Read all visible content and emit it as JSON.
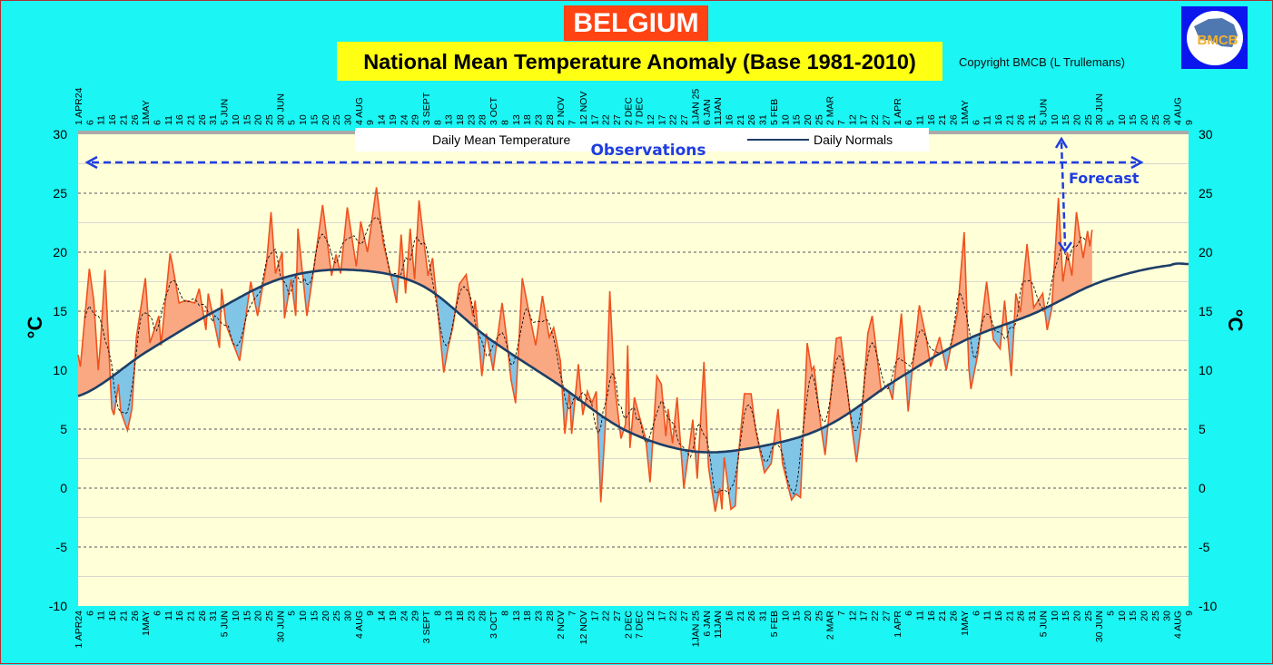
{
  "header": {
    "country": "BELGIUM",
    "title": "National Mean Temperature Anomaly (Base 1981-2010)",
    "copyright": "Copyright BMCB (L Trullemans)",
    "logo_text": "BMCB"
  },
  "colors": {
    "background": "#1bf5f3",
    "plot_background": "#ffffd8",
    "above_normal_fill": "#f9a882",
    "below_normal_fill": "#80c4e6",
    "observation_line": "#f0521e",
    "normal_line": "#1d3e66",
    "annotation": "#1f3de0"
  },
  "chart_data": {
    "type": "area",
    "title": "National Mean Temperature Anomaly (Base 1981-2010)",
    "ylabel": "°C",
    "ylim": [
      -10,
      30
    ],
    "yticks": [
      30,
      25,
      20,
      15,
      10,
      5,
      0,
      -5,
      -10
    ],
    "xlim": [
      "2024-04-01",
      "2025-08-09"
    ],
    "grid": true,
    "legend_position": "top",
    "x_tick_labels": [
      "1 APR24",
      "6",
      "11",
      "16",
      "21",
      "26",
      "1MAY",
      "6",
      "11",
      "16",
      "21",
      "26",
      "31",
      "5 JUN",
      "10",
      "15",
      "20",
      "25",
      "30 JUN",
      "5",
      "10",
      "15",
      "20",
      "25",
      "30",
      "4 AUG",
      "9",
      "14",
      "19",
      "24",
      "29",
      "3 SEPT",
      "8",
      "13",
      "18",
      "23",
      "28",
      "3 OCT",
      "8",
      "13",
      "18",
      "23",
      "28",
      "2 NOV",
      "7",
      "12 NOV",
      "17",
      "22",
      "27",
      "2 DEC",
      "7 DEC",
      "12",
      "17",
      "22",
      "27",
      "1JAN 25",
      "6 JAN",
      "11JAN",
      "16",
      "21",
      "26",
      "31",
      "5 FEB",
      "10",
      "15",
      "20",
      "25",
      "2 MAR",
      "7",
      "12",
      "17",
      "22",
      "27",
      "1 APR",
      "6",
      "11",
      "16",
      "21",
      "26",
      "1MAY",
      "6",
      "11",
      "16",
      "21",
      "26",
      "31",
      "5 JUN",
      "10",
      "15",
      "20",
      "25",
      "30 JUN",
      "5",
      "10",
      "15",
      "20",
      "25",
      "30",
      "4 AUG",
      "9"
    ],
    "annotations": {
      "observations": "Observations",
      "forecast": "Forecast"
    },
    "series": [
      {
        "name": "Daily Mean Temperature",
        "points": [
          [
            "2024-04-01",
            11.3
          ],
          [
            "2024-04-02",
            10.3
          ],
          [
            "2024-04-06",
            18.6
          ],
          [
            "2024-04-08",
            15.9
          ],
          [
            "2024-04-10",
            10
          ],
          [
            "2024-04-11",
            12.3
          ],
          [
            "2024-04-13",
            18.5
          ],
          [
            "2024-04-16",
            6.7
          ],
          [
            "2024-04-17",
            6.2
          ],
          [
            "2024-04-19",
            8.8
          ],
          [
            "2024-04-20",
            6.5
          ],
          [
            "2024-04-23",
            4.9
          ],
          [
            "2024-04-25",
            6.7
          ],
          [
            "2024-04-27",
            12.8
          ],
          [
            "2024-05-01",
            17.8
          ],
          [
            "2024-05-03",
            12.3
          ],
          [
            "2024-05-07",
            14.6
          ],
          [
            "2024-05-08",
            12.1
          ],
          [
            "2024-05-12",
            19.9
          ],
          [
            "2024-05-13",
            19
          ],
          [
            "2024-05-16",
            15.7
          ],
          [
            "2024-05-19",
            15.9
          ],
          [
            "2024-05-23",
            15.7
          ],
          [
            "2024-05-25",
            16.9
          ],
          [
            "2024-05-28",
            13.4
          ],
          [
            "2024-05-29",
            16.5
          ],
          [
            "2024-06-01",
            13.8
          ],
          [
            "2024-06-03",
            11.9
          ],
          [
            "2024-06-04",
            16.9
          ],
          [
            "2024-06-06",
            13.8
          ],
          [
            "2024-06-12",
            10.8
          ],
          [
            "2024-06-17",
            17.5
          ],
          [
            "2024-06-20",
            14.6
          ],
          [
            "2024-06-24",
            19
          ],
          [
            "2024-06-26",
            23.4
          ],
          [
            "2024-06-28",
            18.2
          ],
          [
            "2024-07-01",
            20
          ],
          [
            "2024-07-02",
            14.4
          ],
          [
            "2024-07-05",
            17.7
          ],
          [
            "2024-07-07",
            14.6
          ],
          [
            "2024-07-08",
            22
          ],
          [
            "2024-07-12",
            14.6
          ],
          [
            "2024-07-15",
            18.5
          ],
          [
            "2024-07-19",
            24
          ],
          [
            "2024-07-23",
            18
          ],
          [
            "2024-07-25",
            19.8
          ],
          [
            "2024-07-27",
            18.2
          ],
          [
            "2024-07-30",
            23.8
          ],
          [
            "2024-08-03",
            18.8
          ],
          [
            "2024-08-05",
            22.6
          ],
          [
            "2024-08-08",
            20
          ],
          [
            "2024-08-12",
            25.5
          ],
          [
            "2024-08-15",
            20.8
          ],
          [
            "2024-08-19",
            17.5
          ],
          [
            "2024-08-21",
            15.7
          ],
          [
            "2024-08-23",
            21.5
          ],
          [
            "2024-08-25",
            16.5
          ],
          [
            "2024-08-27",
            22
          ],
          [
            "2024-08-29",
            17.7
          ],
          [
            "2024-08-31",
            24.4
          ],
          [
            "2024-09-04",
            18
          ],
          [
            "2024-09-06",
            19.5
          ],
          [
            "2024-09-08",
            15.7
          ],
          [
            "2024-09-11",
            9.8
          ],
          [
            "2024-09-13",
            12
          ],
          [
            "2024-09-15",
            13.6
          ],
          [
            "2024-09-18",
            17.3
          ],
          [
            "2024-09-21",
            18.1
          ],
          [
            "2024-09-24",
            14.6
          ],
          [
            "2024-09-25",
            15.9
          ],
          [
            "2024-09-28",
            9.5
          ],
          [
            "2024-09-30",
            13.1
          ],
          [
            "2024-10-03",
            10
          ],
          [
            "2024-10-07",
            15.7
          ],
          [
            "2024-10-09",
            12.8
          ],
          [
            "2024-10-11",
            9.2
          ],
          [
            "2024-10-13",
            7.2
          ],
          [
            "2024-10-16",
            17.8
          ],
          [
            "2024-10-19",
            14.9
          ],
          [
            "2024-10-22",
            12.1
          ],
          [
            "2024-10-25",
            16.3
          ],
          [
            "2024-10-28",
            12.8
          ],
          [
            "2024-10-30",
            13.6
          ],
          [
            "2024-11-02",
            10.8
          ],
          [
            "2024-11-04",
            4.6
          ],
          [
            "2024-11-06",
            8.2
          ],
          [
            "2024-11-07",
            4.6
          ],
          [
            "2024-11-10",
            10.5
          ],
          [
            "2024-11-12",
            6.2
          ],
          [
            "2024-11-14",
            8.2
          ],
          [
            "2024-11-16",
            7.2
          ],
          [
            "2024-11-18",
            8.2
          ],
          [
            "2024-11-20",
            -1.2
          ],
          [
            "2024-11-22",
            5.2
          ],
          [
            "2024-11-24",
            16.7
          ],
          [
            "2024-11-26",
            9
          ],
          [
            "2024-11-29",
            4.2
          ],
          [
            "2024-12-01",
            5.4
          ],
          [
            "2024-12-02",
            12.1
          ],
          [
            "2024-12-03",
            3.4
          ],
          [
            "2024-12-05",
            7.7
          ],
          [
            "2024-12-07",
            6.2
          ],
          [
            "2024-12-10",
            4.2
          ],
          [
            "2024-12-12",
            0.5
          ],
          [
            "2024-12-15",
            9.5
          ],
          [
            "2024-12-17",
            8.8
          ],
          [
            "2024-12-19",
            4.4
          ],
          [
            "2024-12-20",
            6.7
          ],
          [
            "2024-12-22",
            3.8
          ],
          [
            "2024-12-24",
            7.7
          ],
          [
            "2024-12-27",
            0
          ],
          [
            "2024-12-29",
            2.8
          ],
          [
            "2024-12-31",
            5.8
          ],
          [
            "2025-01-02",
            0.8
          ],
          [
            "2025-01-05",
            10.7
          ],
          [
            "2025-01-07",
            1.8
          ],
          [
            "2025-01-10",
            -2
          ],
          [
            "2025-01-12",
            0
          ],
          [
            "2025-01-13",
            -1.8
          ],
          [
            "2025-01-14",
            2.6
          ],
          [
            "2025-01-17",
            -1.8
          ],
          [
            "2025-01-19",
            -1.5
          ],
          [
            "2025-01-20",
            2.1
          ],
          [
            "2025-01-23",
            8
          ],
          [
            "2025-01-26",
            8
          ],
          [
            "2025-01-28",
            4.9
          ],
          [
            "2025-02-01",
            1.3
          ],
          [
            "2025-02-04",
            2.1
          ],
          [
            "2025-02-07",
            6.7
          ],
          [
            "2025-02-09",
            2.1
          ],
          [
            "2025-02-13",
            -1
          ],
          [
            "2025-02-15",
            -0.5
          ],
          [
            "2025-02-17",
            -0.8
          ],
          [
            "2025-02-20",
            12.3
          ],
          [
            "2025-02-22",
            10
          ],
          [
            "2025-02-23",
            10.3
          ],
          [
            "2025-02-26",
            5.4
          ],
          [
            "2025-02-28",
            2.8
          ],
          [
            "2025-03-05",
            12.7
          ],
          [
            "2025-03-07",
            12.8
          ],
          [
            "2025-03-11",
            6.5
          ],
          [
            "2025-03-14",
            2.2
          ],
          [
            "2025-03-16",
            5.2
          ],
          [
            "2025-03-19",
            13.1
          ],
          [
            "2025-03-21",
            14.6
          ],
          [
            "2025-03-25",
            8.2
          ],
          [
            "2025-03-28",
            8.8
          ],
          [
            "2025-03-30",
            7.5
          ],
          [
            "2025-04-03",
            14.8
          ],
          [
            "2025-04-06",
            6.5
          ],
          [
            "2025-04-08",
            10.3
          ],
          [
            "2025-04-11",
            15.5
          ],
          [
            "2025-04-14",
            12.8
          ],
          [
            "2025-04-16",
            10.3
          ],
          [
            "2025-04-20",
            12.8
          ],
          [
            "2025-04-23",
            10
          ],
          [
            "2025-04-28",
            14.9
          ],
          [
            "2025-05-01",
            21.7
          ],
          [
            "2025-05-03",
            10.3
          ],
          [
            "2025-05-04",
            8.4
          ],
          [
            "2025-05-07",
            11.3
          ],
          [
            "2025-05-11",
            17.5
          ],
          [
            "2025-05-14",
            12.6
          ],
          [
            "2025-05-17",
            11.8
          ],
          [
            "2025-05-19",
            15.9
          ],
          [
            "2025-05-22",
            9.5
          ],
          [
            "2025-05-24",
            16.5
          ],
          [
            "2025-05-26",
            14.9
          ],
          [
            "2025-05-29",
            20.7
          ],
          [
            "2025-06-01",
            15.3
          ],
          [
            "2025-06-05",
            16.5
          ],
          [
            "2025-06-07",
            13.4
          ],
          [
            "2025-06-09",
            15.2
          ],
          [
            "2025-06-12",
            24.6
          ],
          [
            "2025-06-14",
            17.5
          ],
          [
            "2025-06-16",
            20
          ],
          [
            "2025-06-18",
            18
          ],
          [
            "2025-06-20",
            23.4
          ],
          [
            "2025-06-23",
            19.5
          ],
          [
            "2025-06-25",
            21.8
          ],
          [
            "2025-06-26",
            20.5
          ],
          [
            "2025-06-27",
            21.9
          ]
        ]
      },
      {
        "name": "Daily Normals",
        "points": [
          [
            "2024-04-01",
            7.8
          ],
          [
            "2024-05-01",
            11.5
          ],
          [
            "2024-06-01",
            15
          ],
          [
            "2024-07-01",
            17.8
          ],
          [
            "2024-08-01",
            18.5
          ],
          [
            "2024-09-01",
            17.2
          ],
          [
            "2024-10-01",
            12.7
          ],
          [
            "2024-11-01",
            8.8
          ],
          [
            "2024-12-01",
            4.9
          ],
          [
            "2025-01-01",
            3.1
          ],
          [
            "2025-02-01",
            3.6
          ],
          [
            "2025-03-01",
            5.3
          ],
          [
            "2025-04-01",
            9.2
          ],
          [
            "2025-05-01",
            12.5
          ],
          [
            "2025-06-01",
            14.8
          ],
          [
            "2025-07-01",
            17.5
          ],
          [
            "2025-08-01",
            18.9
          ],
          [
            "2025-08-09",
            19.0
          ]
        ]
      }
    ]
  }
}
